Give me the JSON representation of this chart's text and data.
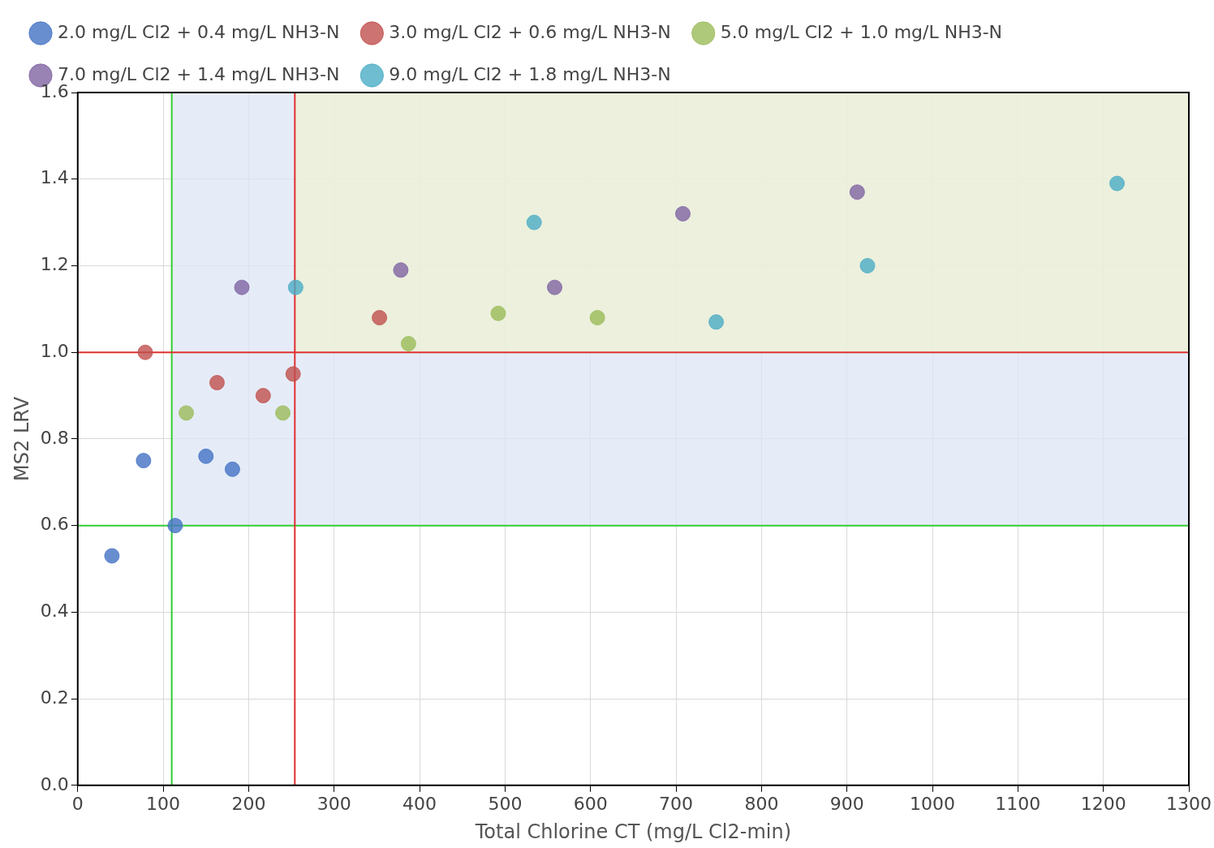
{
  "chart_data": {
    "type": "scatter",
    "xlabel": "Total Chlorine CT (mg/L Cl2-min)",
    "ylabel": "MS2 LRV",
    "xlim": [
      0,
      1300
    ],
    "xticks": [
      0,
      100,
      200,
      300,
      400,
      500,
      600,
      700,
      800,
      900,
      1000,
      1100,
      1200,
      1300
    ],
    "ylim": [
      0,
      1.6
    ],
    "yticks": [
      {
        "value": 0,
        "label": "0.0"
      },
      {
        "value": 0.2,
        "label": "0.2"
      },
      {
        "value": 0.4,
        "label": "0.4"
      },
      {
        "value": 0.6,
        "label": "0.6"
      },
      {
        "value": 0.8,
        "label": "0.8"
      },
      {
        "value": 1,
        "label": "1.0"
      },
      {
        "value": 1.2,
        "label": "1.2"
      },
      {
        "value": 1.4,
        "label": "1.4"
      },
      {
        "value": 1.6,
        "label": "1.6"
      }
    ],
    "grid": true,
    "legend": "top",
    "marker": "circle",
    "series": [
      {
        "name": "2.0 mg/L Cl2 + 0.4 mg/L NH3-N",
        "color": "#4472c4",
        "x": [
          40,
          77,
          114,
          150,
          181
        ],
        "values": [
          0.53,
          0.75,
          0.6,
          0.76,
          0.73
        ]
      },
      {
        "name": "3.0 mg/L Cl2 + 0.6 mg/L NH3-N",
        "color": "#c0504d",
        "x": [
          79,
          163,
          217,
          252,
          353
        ],
        "values": [
          1.0,
          0.93,
          0.9,
          0.95,
          1.08
        ]
      },
      {
        "name": "5.0 mg/L Cl2 + 1.0 mg/L NH3-N",
        "color": "#9bbb59",
        "x": [
          127,
          240,
          387,
          492,
          608
        ],
        "values": [
          0.86,
          0.86,
          1.02,
          1.09,
          1.08
        ]
      },
      {
        "name": "7.0 mg/L Cl2 + 1.4 mg/L NH3-N",
        "color": "#8064a2",
        "x": [
          192,
          378,
          558,
          708,
          912
        ],
        "values": [
          1.15,
          1.19,
          1.15,
          1.32,
          1.37
        ]
      },
      {
        "name": "9.0 mg/L Cl2 + 1.8 mg/L NH3-N",
        "color": "#4bacc6",
        "x": [
          255,
          534,
          747,
          924,
          1216
        ],
        "values": [
          1.15,
          1.3,
          1.07,
          1.2,
          1.39
        ]
      }
    ],
    "ref_lines": [
      {
        "axis": "x",
        "value": 110,
        "color": "#33cc33"
      },
      {
        "axis": "y",
        "value": 0.6,
        "color": "#33cc33"
      },
      {
        "axis": "x",
        "value": 254,
        "color": "#e03030"
      },
      {
        "axis": "y",
        "value": 1.0,
        "color": "#e03030"
      }
    ],
    "bands": [
      {
        "axis": "x",
        "from": 110,
        "to": 1300,
        "color": "#dce6f5"
      },
      {
        "axis": "x",
        "from": 254,
        "to": 1300,
        "color": "#eef2d4"
      }
    ]
  }
}
